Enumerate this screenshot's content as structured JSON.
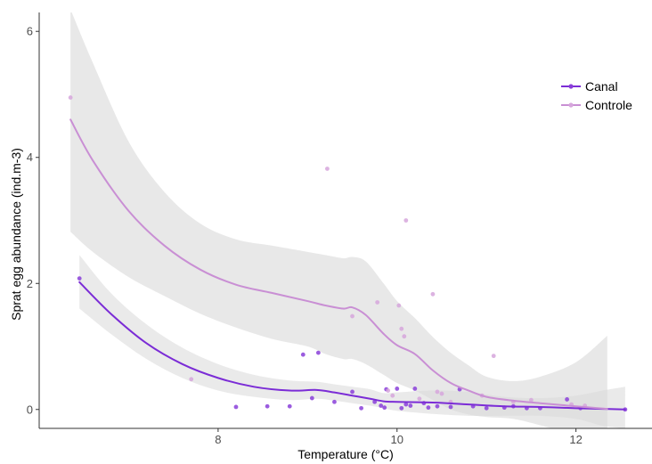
{
  "chart_data": {
    "type": "scatter",
    "title": "",
    "xlabel": "Temperature (°C)",
    "ylabel": "Sprat egg abundance (ind.m-3)",
    "xlim": [
      6.0,
      12.85
    ],
    "ylim": [
      -0.3,
      6.3
    ],
    "xticks": [
      8,
      10,
      12
    ],
    "yticks": [
      0,
      2,
      4,
      6
    ],
    "xtick_labels": [
      "8",
      "10",
      "12"
    ],
    "ytick_labels": [
      "0",
      "2",
      "4",
      "6"
    ],
    "grid": false,
    "legend_position": "top-right",
    "series": [
      {
        "name": "Canal",
        "color": "#7b2cd6",
        "point_color": "#8a3fd9",
        "points": [
          {
            "x": 6.45,
            "y": 2.08
          },
          {
            "x": 8.2,
            "y": 0.04
          },
          {
            "x": 8.55,
            "y": 0.05
          },
          {
            "x": 8.8,
            "y": 0.05
          },
          {
            "x": 8.95,
            "y": 0.87
          },
          {
            "x": 9.12,
            "y": 0.9
          },
          {
            "x": 9.05,
            "y": 0.18
          },
          {
            "x": 9.3,
            "y": 0.12
          },
          {
            "x": 9.5,
            "y": 0.28
          },
          {
            "x": 9.6,
            "y": 0.02
          },
          {
            "x": 9.75,
            "y": 0.12
          },
          {
            "x": 9.82,
            "y": 0.06
          },
          {
            "x": 9.86,
            "y": 0.03
          },
          {
            "x": 9.88,
            "y": 0.32
          },
          {
            "x": 10.0,
            "y": 0.33
          },
          {
            "x": 10.05,
            "y": 0.02
          },
          {
            "x": 10.1,
            "y": 0.08
          },
          {
            "x": 10.15,
            "y": 0.06
          },
          {
            "x": 10.2,
            "y": 0.33
          },
          {
            "x": 10.3,
            "y": 0.1
          },
          {
            "x": 10.35,
            "y": 0.03
          },
          {
            "x": 10.45,
            "y": 0.05
          },
          {
            "x": 10.6,
            "y": 0.04
          },
          {
            "x": 10.7,
            "y": 0.32
          },
          {
            "x": 10.85,
            "y": 0.05
          },
          {
            "x": 11.0,
            "y": 0.02
          },
          {
            "x": 11.2,
            "y": 0.03
          },
          {
            "x": 11.3,
            "y": 0.05
          },
          {
            "x": 11.45,
            "y": 0.02
          },
          {
            "x": 11.6,
            "y": 0.02
          },
          {
            "x": 11.9,
            "y": 0.16
          },
          {
            "x": 12.05,
            "y": 0.02
          },
          {
            "x": 12.55,
            "y": 0.0
          }
        ],
        "smooth_x": [
          6.45,
          6.8,
          7.2,
          7.6,
          8.0,
          8.4,
          8.8,
          9.1,
          9.3,
          9.5,
          9.7,
          9.85,
          10.0,
          10.4,
          10.8,
          11.2,
          11.6,
          12.0,
          12.3,
          12.55
        ],
        "smooth_y": [
          2.02,
          1.52,
          1.05,
          0.72,
          0.5,
          0.36,
          0.3,
          0.31,
          0.27,
          0.22,
          0.17,
          0.13,
          0.12,
          0.11,
          0.08,
          0.05,
          0.04,
          0.02,
          0.01,
          0.0
        ],
        "band_upper": [
          2.45,
          1.85,
          1.35,
          0.98,
          0.72,
          0.55,
          0.46,
          0.44,
          0.4,
          0.36,
          0.32,
          0.26,
          0.27,
          0.3,
          0.28,
          0.2,
          0.18,
          0.22,
          0.3,
          0.36
        ],
        "band_lower": [
          1.6,
          1.2,
          0.8,
          0.5,
          0.3,
          0.2,
          0.15,
          0.17,
          0.14,
          0.1,
          0.06,
          0.02,
          -0.02,
          -0.07,
          -0.1,
          -0.1,
          -0.1,
          -0.15,
          -0.26,
          -0.3
        ]
      },
      {
        "name": "Controle",
        "color": "#c98fd4",
        "point_color": "#d6a6dc",
        "points": [
          {
            "x": 6.35,
            "y": 4.95
          },
          {
            "x": 7.7,
            "y": 0.48
          },
          {
            "x": 9.22,
            "y": 3.82
          },
          {
            "x": 9.5,
            "y": 1.48
          },
          {
            "x": 9.78,
            "y": 1.7
          },
          {
            "x": 10.02,
            "y": 1.65
          },
          {
            "x": 10.05,
            "y": 1.28
          },
          {
            "x": 10.08,
            "y": 1.16
          },
          {
            "x": 10.1,
            "y": 3.0
          },
          {
            "x": 10.4,
            "y": 1.83
          },
          {
            "x": 10.45,
            "y": 0.28
          },
          {
            "x": 10.5,
            "y": 0.25
          },
          {
            "x": 11.08,
            "y": 0.85
          },
          {
            "x": 9.9,
            "y": 0.3
          },
          {
            "x": 9.95,
            "y": 0.22
          },
          {
            "x": 10.25,
            "y": 0.17
          },
          {
            "x": 10.6,
            "y": 0.12
          },
          {
            "x": 10.95,
            "y": 0.22
          },
          {
            "x": 11.3,
            "y": 0.12
          },
          {
            "x": 11.5,
            "y": 0.15
          },
          {
            "x": 11.95,
            "y": 0.08
          },
          {
            "x": 12.1,
            "y": 0.06
          }
        ],
        "smooth_x": [
          6.35,
          6.6,
          7.0,
          7.4,
          7.8,
          8.2,
          8.6,
          9.0,
          9.2,
          9.4,
          9.5,
          9.65,
          9.85,
          10.0,
          10.2,
          10.4,
          10.6,
          10.8,
          11.0,
          11.3,
          11.6,
          12.0,
          12.35
        ],
        "smooth_y": [
          4.6,
          3.95,
          3.15,
          2.6,
          2.22,
          1.98,
          1.85,
          1.72,
          1.65,
          1.6,
          1.62,
          1.5,
          1.2,
          1.02,
          0.88,
          0.62,
          0.42,
          0.3,
          0.2,
          0.14,
          0.1,
          0.05,
          0.01
        ],
        "band_upper": [
          6.35,
          5.5,
          4.25,
          3.45,
          2.95,
          2.7,
          2.6,
          2.5,
          2.45,
          2.4,
          2.42,
          2.35,
          2.0,
          1.72,
          1.45,
          1.15,
          0.9,
          0.7,
          0.52,
          0.45,
          0.52,
          0.75,
          1.17
        ],
        "band_lower": [
          2.82,
          2.5,
          2.1,
          1.8,
          1.52,
          1.3,
          1.12,
          1.0,
          0.88,
          0.8,
          0.8,
          0.72,
          0.55,
          0.42,
          0.3,
          0.15,
          0.0,
          -0.08,
          -0.12,
          -0.15,
          -0.25,
          -0.4,
          -0.55
        ]
      }
    ],
    "band_color": "#d9d9d9"
  }
}
